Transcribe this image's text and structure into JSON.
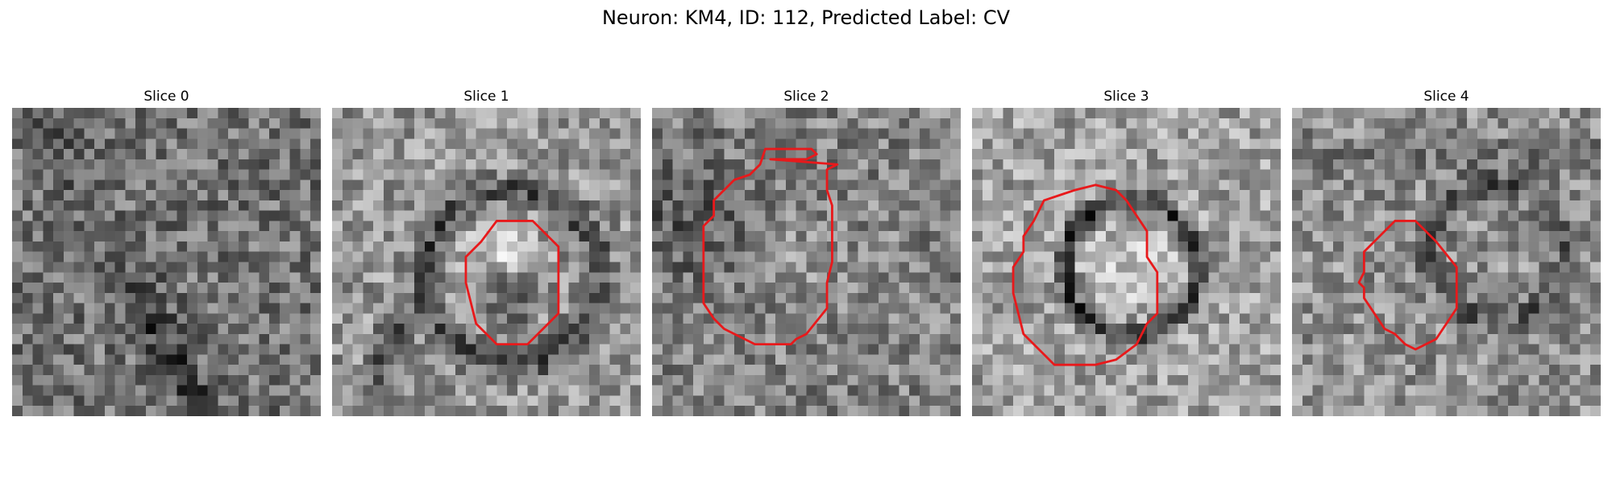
{
  "figure": {
    "title": "Neuron: KM4, ID: 112, Predicted Label: CV",
    "contour_color": "#e8191b"
  },
  "slices": [
    {
      "title": "Slice 0",
      "has_contour": false,
      "contour": []
    },
    {
      "title": "Slice 1",
      "has_contour": true,
      "contour": [
        [
          16,
          11
        ],
        [
          19.5,
          11
        ],
        [
          22,
          13.5
        ],
        [
          22,
          20
        ],
        [
          19,
          23
        ],
        [
          16,
          23
        ],
        [
          14,
          21
        ],
        [
          13.5,
          19
        ],
        [
          13,
          17
        ],
        [
          13,
          14.5
        ],
        [
          14.5,
          13
        ]
      ]
    },
    {
      "title": "Slice 2",
      "has_contour": true,
      "contour": [
        [
          11.5,
          5
        ],
        [
          15,
          5
        ],
        [
          16,
          4.5
        ],
        [
          15.5,
          4
        ],
        [
          11,
          4
        ],
        [
          10.5,
          5.5
        ],
        [
          9.5,
          6.5
        ],
        [
          8,
          7
        ],
        [
          7,
          8
        ],
        [
          6,
          9
        ],
        [
          6,
          10.5
        ],
        [
          5,
          11.5
        ],
        [
          5,
          19
        ],
        [
          6,
          20.5
        ],
        [
          7,
          21.5
        ],
        [
          9,
          22.5
        ],
        [
          10,
          23
        ],
        [
          13.5,
          23
        ],
        [
          14,
          22.5
        ],
        [
          15,
          22
        ],
        [
          17,
          19.5
        ],
        [
          17,
          17
        ],
        [
          17.5,
          15
        ],
        [
          17.5,
          9.5
        ],
        [
          17,
          8
        ],
        [
          17,
          6
        ],
        [
          18,
          5.5
        ]
      ]
    },
    {
      "title": "Slice 3",
      "has_contour": true,
      "contour": [
        [
          10,
          8
        ],
        [
          12,
          7.5
        ],
        [
          14,
          8
        ],
        [
          15,
          9
        ],
        [
          16,
          10.5
        ],
        [
          17,
          12
        ],
        [
          17,
          14.5
        ],
        [
          18,
          16
        ],
        [
          18,
          20
        ],
        [
          17,
          21
        ],
        [
          16,
          23
        ],
        [
          14,
          24.5
        ],
        [
          12,
          25
        ],
        [
          8,
          25
        ],
        [
          7,
          24
        ],
        [
          6,
          23
        ],
        [
          5,
          22
        ],
        [
          4.5,
          20
        ],
        [
          4,
          18
        ],
        [
          4,
          15.5
        ],
        [
          5,
          14
        ],
        [
          5,
          12.5
        ],
        [
          6,
          11
        ],
        [
          7,
          9
        ],
        [
          8.5,
          8.5
        ]
      ]
    },
    {
      "title": "Slice 4",
      "has_contour": true,
      "contour": [
        [
          10,
          11
        ],
        [
          12,
          11
        ],
        [
          14,
          13
        ],
        [
          16,
          15.5
        ],
        [
          16,
          19.5
        ],
        [
          15,
          21
        ],
        [
          14,
          22.5
        ],
        [
          12,
          23.5
        ],
        [
          11,
          23
        ],
        [
          10,
          22
        ],
        [
          9,
          21.5
        ],
        [
          8,
          20
        ],
        [
          7,
          18.5
        ],
        [
          7,
          17.5
        ],
        [
          6.5,
          17
        ],
        [
          7,
          16
        ],
        [
          7,
          14
        ],
        [
          8.5,
          12.5
        ]
      ]
    }
  ]
}
